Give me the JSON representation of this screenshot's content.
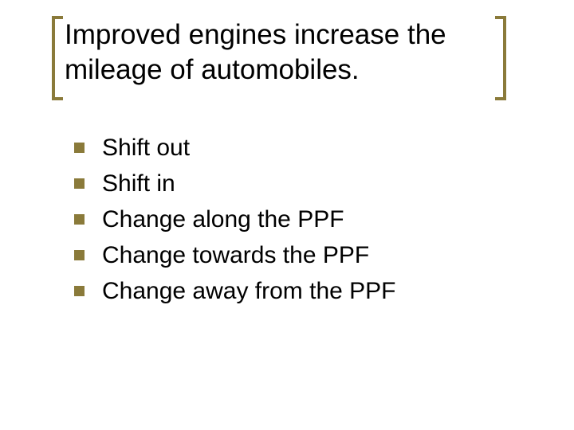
{
  "slide": {
    "title": "Improved engines increase the mileage of automobiles.",
    "title_fontsize": 35,
    "title_color": "#000000",
    "bracket_color": "#8a7a3a",
    "bracket_stroke": 4,
    "bullets": [
      {
        "text": "Shift out"
      },
      {
        "text": "Shift in"
      },
      {
        "text": "Change along the PPF"
      },
      {
        "text": "Change towards the PPF"
      },
      {
        "text": "Change away from the PPF"
      }
    ],
    "bullet_marker_color": "#8a7a3a",
    "bullet_marker_size": 13,
    "bullet_fontsize": 30,
    "bullet_text_color": "#000000",
    "background_color": "#ffffff"
  }
}
